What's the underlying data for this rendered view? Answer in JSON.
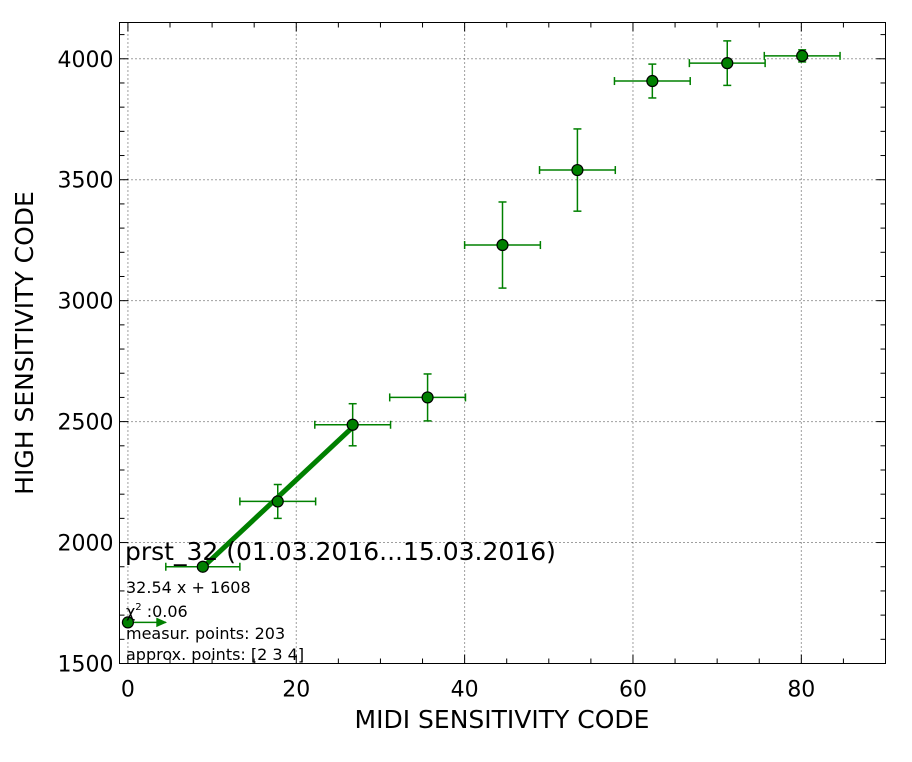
{
  "chart_data": {
    "type": "scatter",
    "title": "",
    "xlabel": "MIDI SENSITIVITY CODE",
    "ylabel": "HIGH SENSITIVITY CODE",
    "xlim": [
      -1,
      90
    ],
    "ylim": [
      1500,
      4150
    ],
    "xticks": [
      0,
      20,
      40,
      60,
      80
    ],
    "yticks": [
      1500,
      2000,
      2500,
      3000,
      3500,
      4000
    ],
    "grid": true,
    "colors": {
      "series": "#008000",
      "marker_fill": "#008000",
      "marker_edge": "#000000"
    },
    "series": [
      {
        "points": [
          {
            "x": 0,
            "y": 1670,
            "xerr_minus": 0,
            "xerr_plus": 4.5,
            "yerr": 0
          },
          {
            "x": 8.9,
            "y": 1900,
            "xerr_minus": 4.4,
            "xerr_plus": 4.4,
            "yerr": 15
          },
          {
            "x": 17.8,
            "y": 2170,
            "xerr_minus": 4.5,
            "xerr_plus": 4.5,
            "yerr": 70
          },
          {
            "x": 26.7,
            "y": 2487,
            "xerr_minus": 4.5,
            "xerr_plus": 4.5,
            "yerr": 87
          },
          {
            "x": 35.6,
            "y": 2600,
            "xerr_minus": 4.5,
            "xerr_plus": 4.5,
            "yerr": 97
          },
          {
            "x": 44.5,
            "y": 3230,
            "xerr_minus": 4.5,
            "xerr_plus": 4.5,
            "yerr": 178
          },
          {
            "x": 53.4,
            "y": 3540,
            "xerr_minus": 4.5,
            "xerr_plus": 4.5,
            "yerr": 170
          },
          {
            "x": 62.3,
            "y": 3908,
            "xerr_minus": 4.5,
            "xerr_plus": 4.5,
            "yerr": 70
          },
          {
            "x": 71.2,
            "y": 3982,
            "xerr_minus": 4.5,
            "xerr_plus": 4.5,
            "yerr": 92
          },
          {
            "x": 80.1,
            "y": 4012,
            "xerr_minus": 4.5,
            "xerr_plus": 4.5,
            "yerr": 25
          }
        ]
      }
    ],
    "fit_line": {
      "slope": 32.54,
      "intercept": 1608,
      "x_range": [
        8.9,
        26.7
      ]
    },
    "annotations": {
      "title": "prst_32 (01.03.2016...15.03.2016)",
      "equation": "32.54 x + 1608",
      "chi2_symbol": "χ",
      "chi2_sup": "2",
      "chi2_value": " :0.06",
      "measur_points": "measur. points: 203",
      "approx_points": "approx. points: [2 3 4]"
    }
  }
}
